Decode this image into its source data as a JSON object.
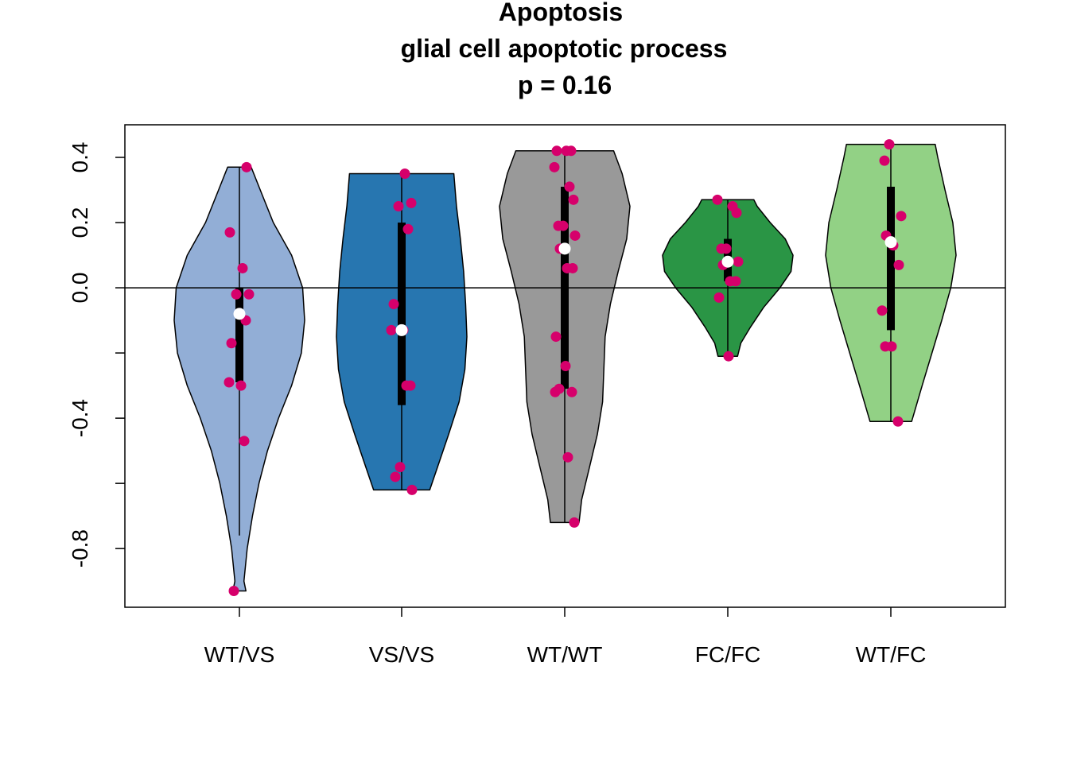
{
  "chart_data": {
    "type": "violin",
    "title_lines": [
      "Apoptosis",
      "glial cell apoptotic process",
      "p = 0.16"
    ],
    "xlabel": "",
    "ylabel": "",
    "ylim": [
      -0.98,
      0.5
    ],
    "y_ticks": [
      -0.8,
      -0.6,
      -0.4,
      -0.2,
      0.0,
      0.2,
      0.4
    ],
    "y_tick_labels": [
      "-0.8",
      "",
      "-0.4",
      "",
      "0.0",
      "0.2",
      "0.4"
    ],
    "reference_line_y": 0.0,
    "grid": false,
    "legend": "none",
    "point_color": "#d6006b",
    "median_color": "#ffffff",
    "categories": [
      "WT/VS",
      "VS/VS",
      "WT/WT",
      "FC/FC",
      "WT/FC"
    ],
    "groups": [
      {
        "category": "WT/VS",
        "fill": "#92aed6",
        "min": -0.93,
        "max": 0.37,
        "whisker_low": -0.76,
        "q1": -0.29,
        "median": -0.08,
        "q3": 0.0,
        "density": [
          [
            -0.93,
            0.1
          ],
          [
            -0.9,
            0.07
          ],
          [
            -0.8,
            0.12
          ],
          [
            -0.7,
            0.2
          ],
          [
            -0.6,
            0.3
          ],
          [
            -0.5,
            0.43
          ],
          [
            -0.4,
            0.6
          ],
          [
            -0.3,
            0.8
          ],
          [
            -0.2,
            0.95
          ],
          [
            -0.1,
            1.0
          ],
          [
            0.0,
            0.97
          ],
          [
            0.1,
            0.8
          ],
          [
            0.2,
            0.52
          ],
          [
            0.3,
            0.32
          ],
          [
            0.37,
            0.18
          ]
        ],
        "points": [
          -0.93,
          0.37,
          0.17,
          0.06,
          -0.02,
          -0.02,
          -0.1,
          -0.17,
          -0.3,
          -0.29,
          -0.47
        ]
      },
      {
        "category": "VS/VS",
        "fill": "#2776b0",
        "min": -0.62,
        "max": 0.35,
        "q1": -0.36,
        "median": -0.13,
        "q3": 0.2,
        "density": [
          [
            -0.62,
            0.43
          ],
          [
            -0.55,
            0.55
          ],
          [
            -0.45,
            0.72
          ],
          [
            -0.35,
            0.88
          ],
          [
            -0.25,
            0.97
          ],
          [
            -0.15,
            1.0
          ],
          [
            -0.05,
            0.98
          ],
          [
            0.05,
            0.95
          ],
          [
            0.15,
            0.9
          ],
          [
            0.25,
            0.84
          ],
          [
            0.35,
            0.8
          ]
        ],
        "points": [
          0.35,
          0.26,
          0.25,
          0.18,
          -0.05,
          -0.13,
          -0.13,
          -0.3,
          -0.3,
          -0.55,
          -0.58,
          -0.62
        ]
      },
      {
        "category": "WT/WT",
        "fill": "#999999",
        "min": -0.72,
        "max": 0.42,
        "q1": -0.31,
        "median": 0.12,
        "q3": 0.31,
        "density": [
          [
            -0.72,
            0.22
          ],
          [
            -0.65,
            0.26
          ],
          [
            -0.55,
            0.38
          ],
          [
            -0.45,
            0.5
          ],
          [
            -0.35,
            0.58
          ],
          [
            -0.25,
            0.6
          ],
          [
            -0.15,
            0.62
          ],
          [
            -0.05,
            0.7
          ],
          [
            0.05,
            0.82
          ],
          [
            0.15,
            0.95
          ],
          [
            0.25,
            1.0
          ],
          [
            0.35,
            0.88
          ],
          [
            0.42,
            0.75
          ]
        ],
        "points": [
          0.42,
          0.42,
          0.42,
          0.37,
          0.31,
          0.27,
          0.19,
          0.19,
          0.16,
          0.12,
          0.06,
          0.06,
          -0.15,
          -0.24,
          -0.31,
          -0.32,
          -0.32,
          -0.52,
          -0.72
        ]
      },
      {
        "category": "FC/FC",
        "fill": "#2a9545",
        "min": -0.21,
        "max": 0.27,
        "q1": 0.02,
        "median": 0.08,
        "q3": 0.15,
        "density": [
          [
            -0.21,
            0.15
          ],
          [
            -0.17,
            0.2
          ],
          [
            -0.12,
            0.35
          ],
          [
            -0.06,
            0.55
          ],
          [
            0.0,
            0.8
          ],
          [
            0.05,
            0.97
          ],
          [
            0.1,
            1.0
          ],
          [
            0.15,
            0.88
          ],
          [
            0.2,
            0.65
          ],
          [
            0.25,
            0.45
          ],
          [
            0.27,
            0.4
          ]
        ],
        "points": [
          0.27,
          0.25,
          0.23,
          0.12,
          0.12,
          0.08,
          0.07,
          0.02,
          0.02,
          -0.03,
          -0.21
        ]
      },
      {
        "category": "WT/FC",
        "fill": "#92d185",
        "min": -0.41,
        "max": 0.44,
        "q1": -0.13,
        "median": 0.14,
        "q3": 0.31,
        "density": [
          [
            -0.41,
            0.32
          ],
          [
            -0.3,
            0.48
          ],
          [
            -0.2,
            0.63
          ],
          [
            -0.1,
            0.78
          ],
          [
            0.0,
            0.92
          ],
          [
            0.1,
            1.0
          ],
          [
            0.2,
            0.95
          ],
          [
            0.3,
            0.83
          ],
          [
            0.4,
            0.72
          ],
          [
            0.44,
            0.68
          ]
        ],
        "points": [
          0.44,
          0.39,
          0.22,
          0.16,
          0.13,
          0.07,
          -0.07,
          -0.18,
          -0.18,
          -0.41
        ]
      }
    ]
  }
}
